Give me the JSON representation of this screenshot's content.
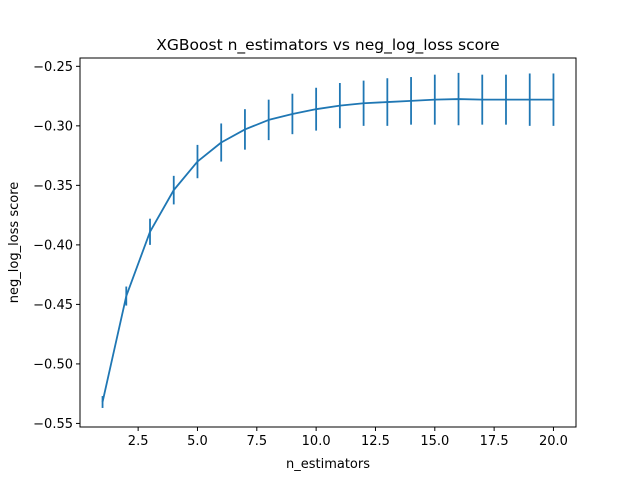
{
  "chart_data": {
    "type": "line",
    "title": "XGBoost n_estimators vs neg_log_loss score",
    "xlabel": "n_estimators",
    "ylabel": "neg_log_loss score",
    "xlim": [
      0.05,
      20.95
    ],
    "ylim": [
      -0.553,
      -0.243
    ],
    "x_ticks": [
      2.5,
      5.0,
      7.5,
      10.0,
      12.5,
      15.0,
      17.5,
      20.0
    ],
    "x_tick_labels": [
      "2.5",
      "5.0",
      "7.5",
      "10.0",
      "12.5",
      "15.0",
      "17.5",
      "20.0"
    ],
    "y_ticks": [
      -0.55,
      -0.5,
      -0.45,
      -0.4,
      -0.35,
      -0.3,
      -0.25
    ],
    "y_tick_labels": [
      "−0.55",
      "−0.50",
      "−0.45",
      "−0.40",
      "−0.35",
      "−0.30",
      "−0.25"
    ],
    "grid": false,
    "series": [
      {
        "color": "#1f77b4",
        "x": [
          1,
          2,
          3,
          4,
          5,
          6,
          7,
          8,
          9,
          10,
          11,
          12,
          13,
          14,
          15,
          16,
          17,
          18,
          19,
          20
        ],
        "y": [
          -0.532,
          -0.443,
          -0.389,
          -0.354,
          -0.33,
          -0.314,
          -0.303,
          -0.295,
          -0.29,
          -0.286,
          -0.283,
          -0.281,
          -0.28,
          -0.279,
          -0.278,
          -0.2775,
          -0.278,
          -0.278,
          -0.278,
          -0.278
        ],
        "err": [
          0.005,
          0.008,
          0.011,
          0.012,
          0.014,
          0.016,
          0.017,
          0.017,
          0.017,
          0.018,
          0.019,
          0.019,
          0.02,
          0.02,
          0.021,
          0.022,
          0.021,
          0.021,
          0.022,
          0.022
        ]
      }
    ]
  }
}
